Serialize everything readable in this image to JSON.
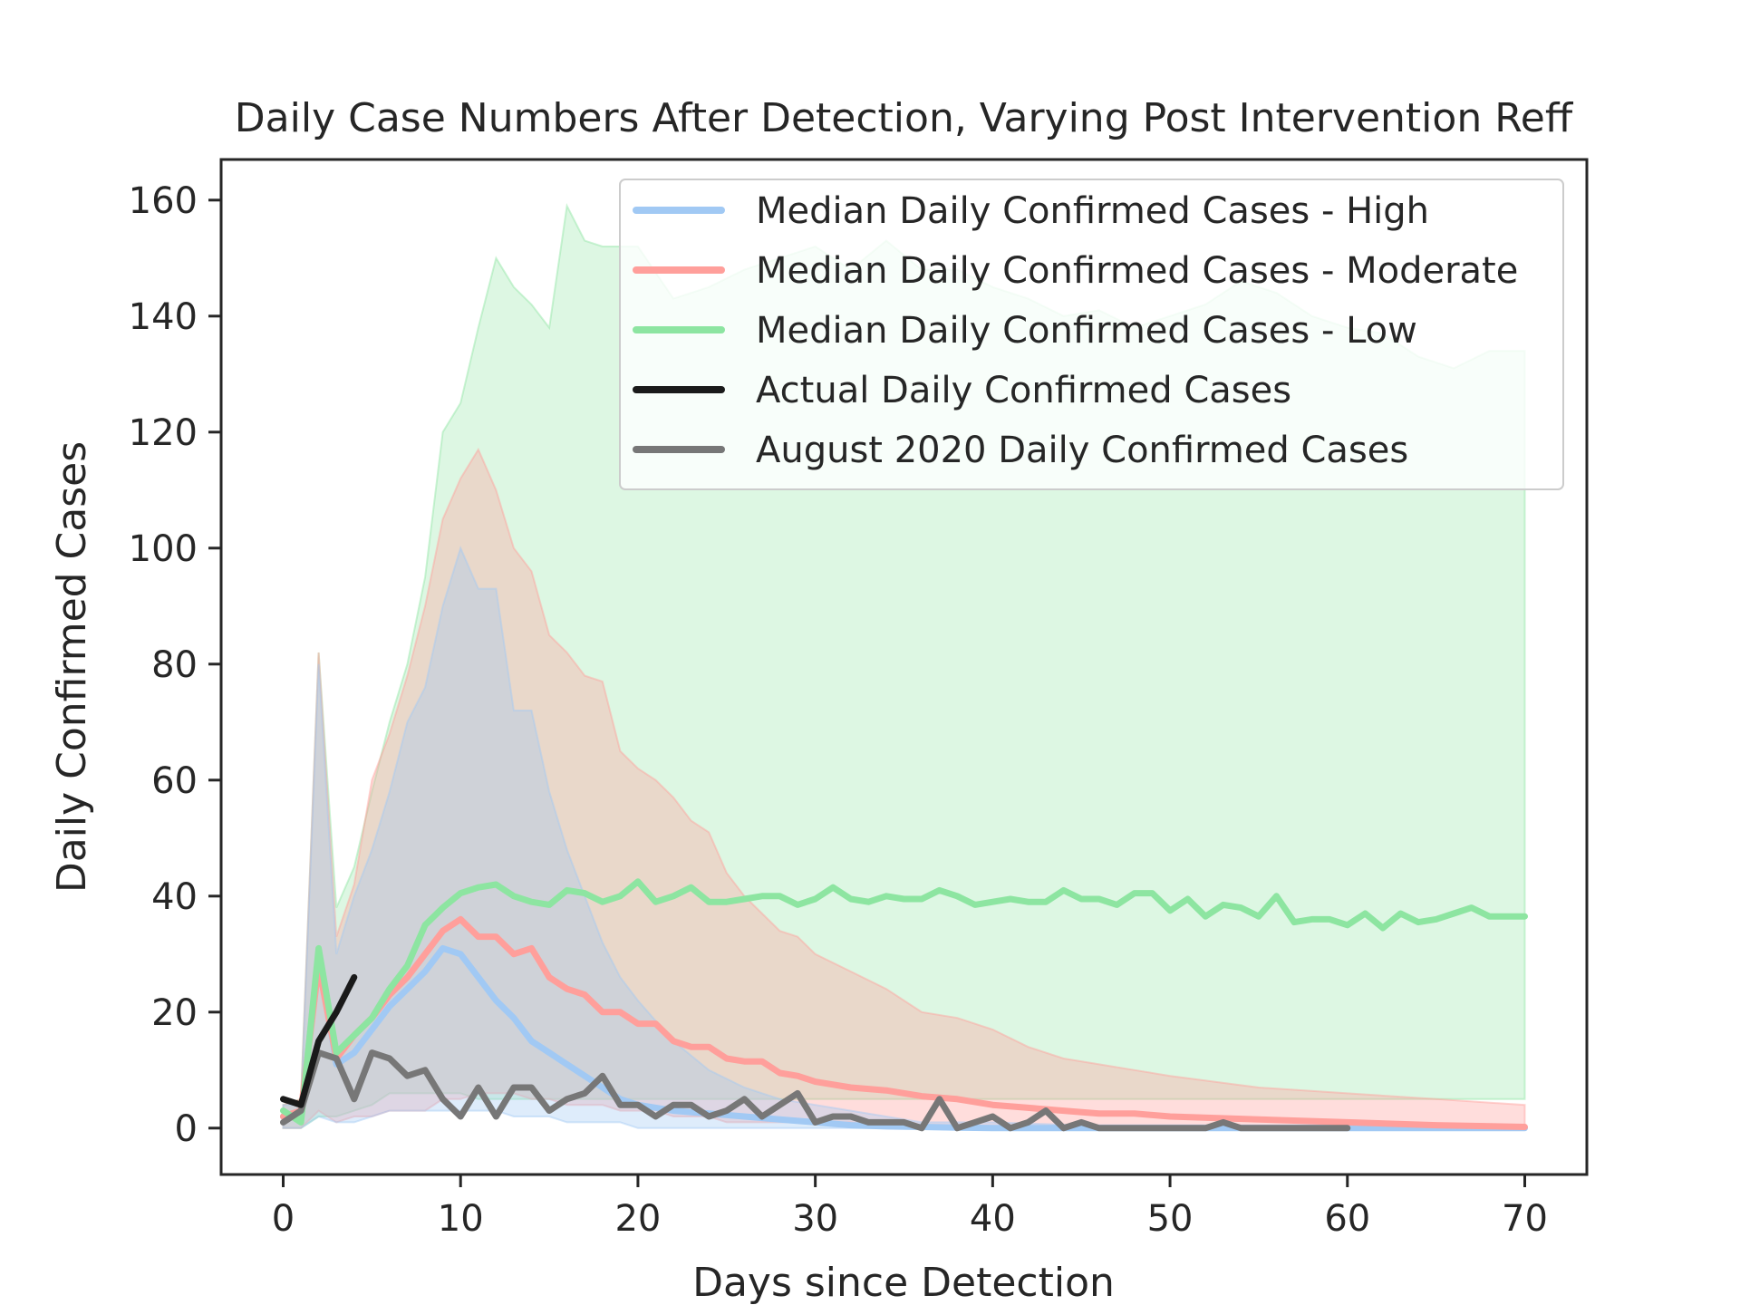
{
  "chart_data": {
    "type": "line",
    "title": "Daily Case Numbers After Detection, Varying Post Intervention Reff",
    "xlabel": "Days since Detection",
    "ylabel": "Daily Confirmed Cases",
    "xlim": [
      -3.5,
      73.5
    ],
    "ylim": [
      -8,
      167
    ],
    "xticks": [
      0,
      10,
      20,
      30,
      40,
      50,
      60,
      70
    ],
    "yticks": [
      0,
      20,
      40,
      60,
      80,
      100,
      120,
      140,
      160
    ],
    "legend_position": "top-right",
    "grid": false,
    "series": [
      {
        "name": "Median Daily Confirmed Cases - High",
        "color": "#a1c9f4",
        "x": [
          0,
          1,
          2,
          3,
          4,
          5,
          6,
          7,
          8,
          9,
          10,
          11,
          12,
          13,
          14,
          15,
          16,
          17,
          18,
          19,
          20,
          22,
          24,
          26,
          28,
          30,
          32,
          34,
          36,
          38,
          40,
          45,
          50,
          55,
          60,
          65,
          70
        ],
        "y": [
          2,
          2,
          30,
          11,
          13,
          17,
          21,
          24,
          27,
          31,
          30,
          26,
          22,
          19,
          15,
          13,
          11,
          9,
          7,
          5,
          4,
          3,
          2.5,
          2,
          1.5,
          1,
          0.5,
          0.3,
          0.2,
          0.1,
          0,
          0,
          0,
          0,
          0,
          0,
          0
        ],
        "band_x": [
          0,
          1,
          2,
          3,
          4,
          5,
          6,
          7,
          8,
          9,
          10,
          11,
          12,
          13,
          14,
          15,
          16,
          17,
          18,
          19,
          20,
          22,
          24,
          26,
          28,
          30,
          32,
          34,
          36,
          38,
          40,
          45,
          50,
          55,
          60,
          65,
          70
        ],
        "band_low": [
          0,
          0,
          2,
          1,
          1,
          2,
          3,
          3,
          3,
          3,
          3,
          3,
          3,
          2,
          2,
          2,
          1,
          1,
          1,
          1,
          0,
          0,
          0,
          0,
          0,
          0,
          0,
          0,
          0,
          0,
          0,
          0,
          0,
          0,
          0,
          0,
          0
        ],
        "band_high": [
          4,
          4,
          80,
          30,
          40,
          48,
          58,
          70,
          76,
          90,
          100,
          93,
          93,
          72,
          72,
          58,
          48,
          40,
          32,
          26,
          22,
          15,
          10,
          7,
          5,
          4,
          3,
          2,
          1,
          1,
          1,
          0.5,
          0.5,
          0.5,
          0.5,
          0.5,
          0.5
        ]
      },
      {
        "name": "Median Daily Confirmed Cases - Moderate",
        "color": "#ff9f9b",
        "x": [
          0,
          1,
          2,
          3,
          4,
          5,
          6,
          7,
          8,
          9,
          10,
          11,
          12,
          13,
          14,
          15,
          16,
          17,
          18,
          19,
          20,
          21,
          22,
          23,
          24,
          25,
          26,
          27,
          28,
          29,
          30,
          32,
          34,
          36,
          38,
          40,
          42,
          44,
          46,
          48,
          50,
          55,
          60,
          65,
          70
        ],
        "y": [
          2,
          3,
          28,
          12,
          16,
          19,
          23,
          26,
          30,
          34,
          36,
          33,
          33,
          30,
          31,
          26,
          24,
          23,
          20,
          20,
          18,
          18,
          15,
          14,
          14,
          12,
          11.5,
          11.5,
          9.5,
          9,
          8,
          7,
          6.5,
          5.5,
          5,
          4,
          3.5,
          3,
          2.5,
          2.5,
          2,
          1.5,
          1,
          0.5,
          0.2
        ],
        "band_x": [
          0,
          1,
          2,
          3,
          4,
          5,
          6,
          7,
          8,
          9,
          10,
          11,
          12,
          13,
          14,
          15,
          16,
          17,
          18,
          19,
          20,
          21,
          22,
          23,
          24,
          25,
          26,
          27,
          28,
          29,
          30,
          32,
          34,
          36,
          38,
          40,
          42,
          44,
          46,
          48,
          50,
          55,
          60,
          65,
          70
        ],
        "band_low": [
          0,
          0,
          3,
          1,
          2,
          2,
          3,
          3,
          3,
          5,
          5,
          6,
          6,
          6,
          5,
          5,
          4,
          4,
          4,
          3,
          3,
          3,
          2,
          2,
          2,
          1,
          1,
          1,
          1,
          1,
          1,
          1,
          0,
          0,
          0,
          0,
          0,
          0,
          0,
          0,
          0,
          0,
          0,
          0,
          0
        ],
        "band_high": [
          4,
          5,
          82,
          33,
          42,
          60,
          68,
          78,
          90,
          105,
          112,
          117,
          110,
          100,
          96,
          85,
          82,
          78,
          77,
          65,
          62,
          60,
          57,
          53,
          51,
          44,
          40,
          37,
          34,
          33,
          30,
          27,
          24,
          20,
          19,
          17,
          14,
          12,
          11,
          10,
          9,
          7,
          6,
          5,
          4
        ]
      },
      {
        "name": "Median Daily Confirmed Cases - Low",
        "color": "#8de5a1",
        "x": [
          0,
          1,
          2,
          3,
          4,
          5,
          6,
          7,
          8,
          9,
          10,
          11,
          12,
          13,
          14,
          15,
          16,
          17,
          18,
          19,
          20,
          21,
          22,
          23,
          24,
          25,
          26,
          27,
          28,
          29,
          30,
          31,
          32,
          33,
          34,
          35,
          36,
          37,
          38,
          39,
          40,
          41,
          42,
          43,
          44,
          45,
          46,
          47,
          48,
          49,
          50,
          51,
          52,
          53,
          54,
          55,
          56,
          57,
          58,
          59,
          60,
          61,
          62,
          63,
          64,
          65,
          66,
          67,
          68,
          69,
          70
        ],
        "y": [
          3,
          1,
          31,
          13,
          16,
          19,
          24,
          28,
          35,
          38,
          40.5,
          41.5,
          42,
          40,
          39,
          38.5,
          41,
          40.5,
          39,
          40,
          42.5,
          39,
          40,
          41.5,
          39,
          39,
          39.5,
          40,
          40,
          38.5,
          39.5,
          41.5,
          39.5,
          39,
          40,
          39.5,
          39.5,
          41,
          40,
          38.5,
          39,
          39.5,
          39,
          39,
          41,
          39.5,
          39.5,
          38.5,
          40.5,
          40.5,
          37.5,
          39.5,
          36.5,
          38.5,
          38,
          36.5,
          40,
          35.5,
          36,
          36,
          35,
          37,
          34.5,
          37,
          35.5,
          36,
          37,
          38,
          36.5,
          36.5,
          36.5
        ],
        "band_x": [
          0,
          1,
          2,
          3,
          4,
          5,
          6,
          7,
          8,
          9,
          10,
          11,
          12,
          13,
          14,
          15,
          16,
          17,
          18,
          20,
          22,
          24,
          26,
          28,
          30,
          32,
          34,
          36,
          38,
          40,
          42,
          44,
          46,
          48,
          50,
          52,
          54,
          56,
          58,
          60,
          62,
          64,
          66,
          68,
          70
        ],
        "band_low": [
          0,
          0,
          2,
          2,
          3,
          4,
          6,
          6,
          6,
          6,
          6,
          5,
          5,
          5,
          5,
          5,
          5,
          5,
          5,
          5,
          5,
          5,
          5,
          5,
          5,
          5,
          5,
          5,
          5,
          5,
          5,
          5,
          5,
          5,
          5,
          5,
          5,
          5,
          5,
          5,
          5,
          5,
          5,
          5,
          5
        ],
        "band_high": [
          4,
          5,
          82,
          38,
          45,
          58,
          70,
          80,
          95,
          120,
          125,
          138,
          150,
          145,
          142,
          138,
          159,
          153,
          152,
          152,
          143,
          145,
          148,
          150,
          152,
          148,
          153,
          148,
          148,
          145,
          143,
          140,
          141,
          138,
          140,
          142,
          146,
          144,
          140,
          138,
          137,
          133,
          131,
          134,
          134
        ]
      },
      {
        "name": "Actual Daily Confirmed Cases",
        "color": "#1a1a1a",
        "x": [
          0,
          1,
          2,
          3,
          4
        ],
        "y": [
          5,
          4,
          15,
          20,
          26
        ]
      },
      {
        "name": "August 2020 Daily Confirmed Cases",
        "color": "#777777",
        "x": [
          0,
          1,
          2,
          3,
          4,
          5,
          6,
          7,
          8,
          9,
          10,
          11,
          12,
          13,
          14,
          15,
          16,
          17,
          18,
          19,
          20,
          21,
          22,
          23,
          24,
          25,
          26,
          27,
          28,
          29,
          30,
          31,
          32,
          33,
          34,
          35,
          36,
          37,
          38,
          39,
          40,
          41,
          42,
          43,
          44,
          45,
          46,
          47,
          48,
          49,
          50,
          51,
          52,
          53,
          54,
          55,
          56,
          57,
          58,
          59,
          60
        ],
        "y": [
          1,
          3,
          13,
          12,
          5,
          13,
          12,
          9,
          10,
          5,
          2,
          7,
          2,
          7,
          7,
          3,
          5,
          6,
          9,
          4,
          4,
          2,
          4,
          4,
          2,
          3,
          5,
          2,
          4,
          6,
          1,
          2,
          2,
          1,
          1,
          1,
          0,
          5,
          0,
          1,
          2,
          0,
          1,
          3,
          0,
          1,
          0,
          0,
          0,
          0,
          0,
          0,
          0,
          1,
          0,
          0,
          0,
          0,
          0,
          0,
          0
        ]
      }
    ]
  }
}
